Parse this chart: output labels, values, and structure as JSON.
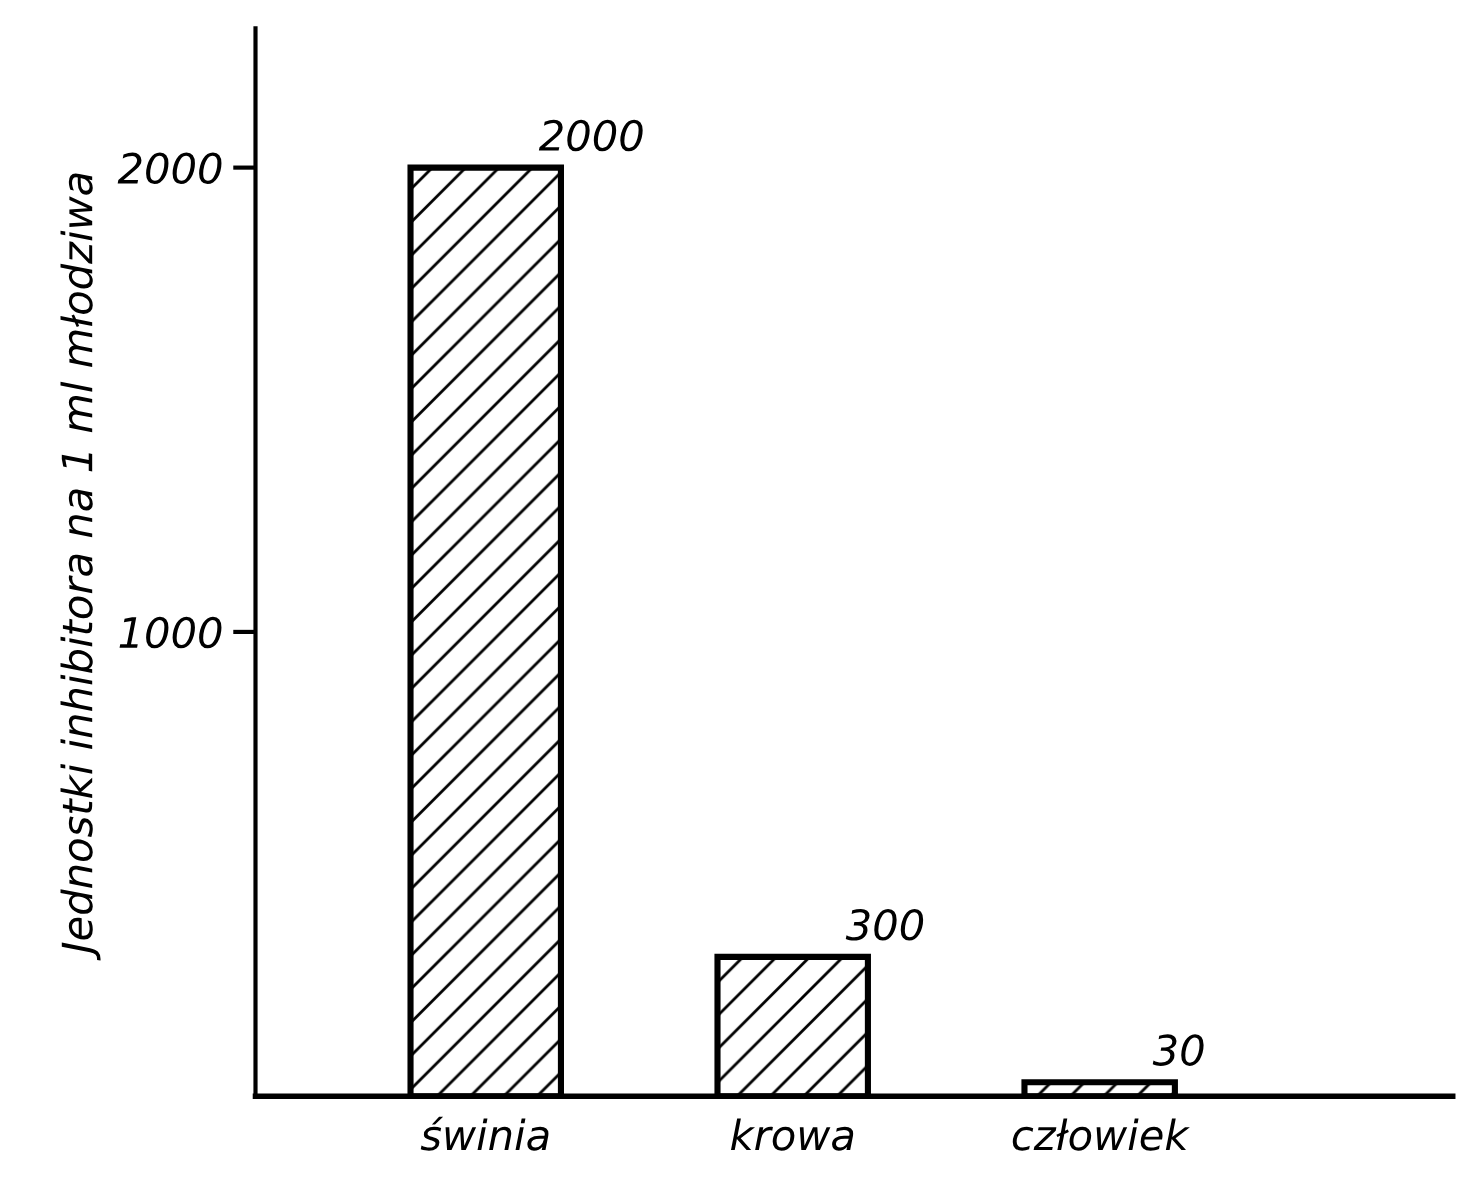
{
  "chart_data": {
    "type": "bar",
    "ylabel": "Jednostki inhibitora na 1 ml młodziwa",
    "categories": [
      "świnia",
      "krowa",
      "człowiek"
    ],
    "values": [
      2000,
      300,
      30
    ],
    "color": "#000000",
    "ylim": [
      0,
      2300
    ],
    "yticks": [
      1000,
      2000
    ],
    "grid": false,
    "data_labels": true
  }
}
